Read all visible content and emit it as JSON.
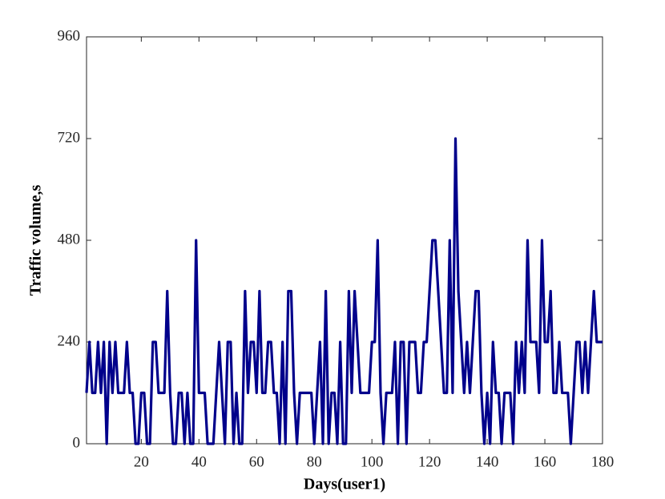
{
  "chart_data": {
    "type": "line",
    "x_label": "Days(user1)",
    "y_label": "Traffic volume,s",
    "xlim": [
      1,
      180
    ],
    "xticks": [
      20,
      40,
      60,
      80,
      100,
      120,
      140,
      160,
      180
    ],
    "ylim": [
      0,
      960
    ],
    "yticks": [
      0,
      240,
      480,
      720,
      960
    ],
    "x": [
      1,
      2,
      3,
      4,
      5,
      6,
      7,
      8,
      9,
      10,
      11,
      12,
      13,
      14,
      15,
      16,
      17,
      18,
      19,
      20,
      21,
      22,
      23,
      24,
      25,
      26,
      27,
      28,
      29,
      30,
      31,
      32,
      33,
      34,
      35,
      36,
      37,
      38,
      39,
      40,
      41,
      42,
      43,
      44,
      45,
      46,
      47,
      48,
      49,
      50,
      51,
      52,
      53,
      54,
      55,
      56,
      57,
      58,
      59,
      60,
      61,
      62,
      63,
      64,
      65,
      66,
      67,
      68,
      69,
      70,
      71,
      72,
      73,
      74,
      75,
      76,
      77,
      78,
      79,
      80,
      81,
      82,
      83,
      84,
      85,
      86,
      87,
      88,
      89,
      90,
      91,
      92,
      93,
      94,
      95,
      96,
      97,
      98,
      99,
      100,
      101,
      102,
      103,
      104,
      105,
      106,
      107,
      108,
      109,
      110,
      111,
      112,
      113,
      114,
      115,
      116,
      117,
      118,
      119,
      120,
      121,
      122,
      123,
      124,
      125,
      126,
      127,
      128,
      129,
      130,
      131,
      132,
      133,
      134,
      135,
      136,
      137,
      138,
      139,
      140,
      141,
      142,
      143,
      144,
      145,
      146,
      147,
      148,
      149,
      150,
      151,
      152,
      153,
      154,
      155,
      156,
      157,
      158,
      159,
      160,
      161,
      162,
      163,
      164,
      165,
      166,
      167,
      168,
      169,
      170,
      171,
      172,
      173,
      174,
      175,
      176,
      177,
      178,
      179,
      180
    ],
    "series": [
      {
        "color": "#00008b",
        "values": [
          120,
          240,
          120,
          120,
          240,
          120,
          240,
          0,
          240,
          120,
          240,
          120,
          120,
          120,
          240,
          120,
          120,
          0,
          0,
          120,
          120,
          0,
          0,
          240,
          240,
          120,
          120,
          120,
          360,
          120,
          0,
          0,
          120,
          120,
          0,
          120,
          0,
          0,
          480,
          120,
          120,
          120,
          0,
          0,
          0,
          120,
          240,
          120,
          0,
          240,
          240,
          0,
          120,
          0,
          0,
          360,
          120,
          240,
          240,
          120,
          360,
          120,
          120,
          240,
          240,
          120,
          120,
          0,
          240,
          0,
          360,
          360,
          120,
          0,
          120,
          120,
          120,
          120,
          120,
          0,
          120,
          240,
          0,
          360,
          0,
          120,
          120,
          0,
          240,
          0,
          0,
          360,
          120,
          360,
          240,
          120,
          120,
          120,
          120,
          240,
          240,
          480,
          120,
          0,
          120,
          120,
          120,
          240,
          0,
          240,
          240,
          0,
          240,
          240,
          240,
          120,
          120,
          240,
          240,
          360,
          480,
          480,
          360,
          240,
          120,
          120,
          480,
          120,
          720,
          360,
          240,
          120,
          240,
          120,
          240,
          360,
          360,
          120,
          0,
          120,
          0,
          240,
          120,
          120,
          0,
          120,
          120,
          120,
          0,
          240,
          120,
          240,
          120,
          480,
          240,
          240,
          240,
          120,
          480,
          240,
          240,
          360,
          120,
          120,
          240,
          120,
          120,
          120,
          0,
          120,
          240,
          240,
          120,
          240,
          120,
          240,
          360,
          240,
          240,
          240
        ]
      }
    ]
  }
}
